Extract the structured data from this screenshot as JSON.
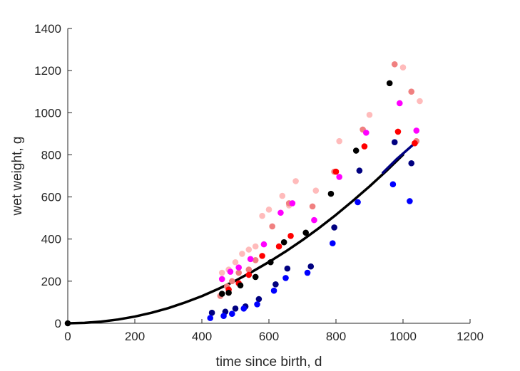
{
  "chart_data": {
    "type": "scatter",
    "xlabel": "time since birth, d",
    "ylabel": "wet weight, g",
    "xlim": [
      0,
      1200
    ],
    "ylim": [
      0,
      1400
    ],
    "xticks": [
      0,
      200,
      400,
      600,
      800,
      1000,
      1200
    ],
    "yticks": [
      0,
      200,
      400,
      600,
      800,
      1000,
      1200,
      1400
    ],
    "grid": false,
    "series": [
      {
        "color": "#ffbbbb",
        "points": [
          [
            460,
            240
          ],
          [
            480,
            255
          ],
          [
            500,
            290
          ],
          [
            520,
            330
          ],
          [
            540,
            350
          ],
          [
            560,
            365
          ],
          [
            580,
            510
          ],
          [
            600,
            540
          ],
          [
            640,
            605
          ],
          [
            660,
            560
          ],
          [
            680,
            675
          ],
          [
            740,
            630
          ],
          [
            810,
            865
          ],
          [
            900,
            990
          ],
          [
            1000,
            1215
          ],
          [
            1050,
            1055
          ]
        ]
      },
      {
        "color": "#f08080",
        "points": [
          [
            455,
            130
          ],
          [
            475,
            175
          ],
          [
            490,
            200
          ],
          [
            510,
            240
          ],
          [
            540,
            255
          ],
          [
            560,
            300
          ],
          [
            610,
            460
          ],
          [
            660,
            570
          ],
          [
            730,
            555
          ],
          [
            795,
            720
          ],
          [
            880,
            920
          ],
          [
            975,
            1230
          ],
          [
            1025,
            1100
          ],
          [
            1040,
            865
          ]
        ]
      },
      {
        "color": "#ff0000",
        "points": [
          [
            480,
            160
          ],
          [
            510,
            190
          ],
          [
            540,
            230
          ],
          [
            580,
            320
          ],
          [
            630,
            365
          ],
          [
            665,
            415
          ],
          [
            800,
            720
          ],
          [
            885,
            840
          ],
          [
            985,
            910
          ],
          [
            1035,
            855
          ]
        ]
      },
      {
        "color": "#ff00ff",
        "points": [
          [
            460,
            210
          ],
          [
            485,
            245
          ],
          [
            510,
            265
          ],
          [
            545,
            305
          ],
          [
            585,
            375
          ],
          [
            635,
            525
          ],
          [
            670,
            570
          ],
          [
            735,
            490
          ],
          [
            810,
            695
          ],
          [
            890,
            905
          ],
          [
            990,
            1045
          ],
          [
            1040,
            915
          ]
        ]
      },
      {
        "color": "#000000",
        "points": [
          [
            0,
            0
          ],
          [
            460,
            140
          ],
          [
            480,
            145
          ],
          [
            515,
            180
          ],
          [
            560,
            220
          ],
          [
            605,
            290
          ],
          [
            645,
            385
          ],
          [
            710,
            430
          ],
          [
            785,
            615
          ],
          [
            860,
            820
          ],
          [
            960,
            1140
          ]
        ]
      },
      {
        "color": "#000080",
        "points": [
          [
            430,
            50
          ],
          [
            470,
            55
          ],
          [
            500,
            70
          ],
          [
            530,
            80
          ],
          [
            570,
            115
          ],
          [
            620,
            185
          ],
          [
            655,
            260
          ],
          [
            725,
            270
          ],
          [
            795,
            455
          ],
          [
            870,
            725
          ],
          [
            975,
            860
          ],
          [
            1025,
            760
          ]
        ]
      },
      {
        "color": "#0000ff",
        "points": [
          [
            425,
            25
          ],
          [
            465,
            35
          ],
          [
            490,
            45
          ],
          [
            525,
            70
          ],
          [
            565,
            90
          ],
          [
            615,
            155
          ],
          [
            650,
            215
          ],
          [
            715,
            240
          ],
          [
            790,
            380
          ],
          [
            865,
            575
          ],
          [
            970,
            660
          ],
          [
            1020,
            580
          ]
        ]
      }
    ],
    "curves": [
      {
        "color": "#000000",
        "points": [
          [
            0,
            0
          ],
          [
            50,
            2
          ],
          [
            100,
            8
          ],
          [
            150,
            18
          ],
          [
            200,
            32
          ],
          [
            250,
            50
          ],
          [
            300,
            72
          ],
          [
            350,
            99
          ],
          [
            400,
            129
          ],
          [
            450,
            164
          ],
          [
            500,
            202
          ],
          [
            550,
            245
          ],
          [
            600,
            291
          ],
          [
            650,
            341
          ],
          [
            700,
            395
          ],
          [
            750,
            453
          ],
          [
            800,
            515
          ],
          [
            850,
            581
          ],
          [
            900,
            650
          ],
          [
            950,
            723
          ],
          [
            1000,
            800
          ]
        ]
      },
      {
        "color": "#000080",
        "points": [
          [
            940,
            715
          ],
          [
            980,
            778
          ],
          [
            1035,
            855
          ]
        ]
      }
    ]
  }
}
